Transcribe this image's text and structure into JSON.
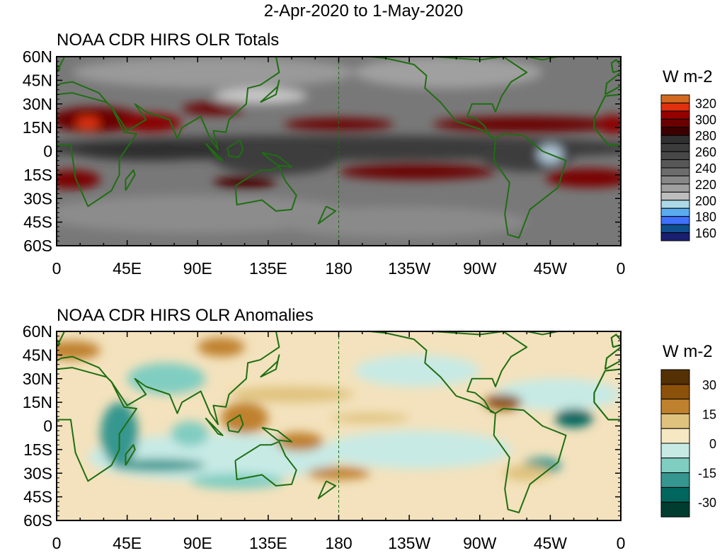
{
  "title": "2-Apr-2020 to 1-May-2020",
  "chart_data": [
    {
      "type": "heatmap",
      "title": "NOAA CDR HIRS OLR Totals",
      "lat_labels": [
        "60N",
        "45N",
        "30N",
        "15N",
        "0",
        "15S",
        "30S",
        "45S",
        "60S"
      ],
      "lon_labels": [
        "0",
        "45E",
        "90E",
        "135E",
        "180",
        "135W",
        "90W",
        "45W",
        "0"
      ],
      "lat_range": [
        -60,
        60
      ],
      "lon_range": [
        0,
        360
      ],
      "colorbar": {
        "unit": "W m-2",
        "labels": [
          "320",
          "300",
          "280",
          "260",
          "240",
          "220",
          "200",
          "180",
          "160"
        ],
        "colors": [
          "#d2691e",
          "#e0300e",
          "#960000",
          "#6a0000",
          "#3c0000",
          "#303030",
          "#3c3c3c",
          "#484848",
          "#585858",
          "#6c6c6c",
          "#888888",
          "#a0a0a0",
          "#bdbdbd",
          "#add8e6",
          "#5aacf0",
          "#4070ff",
          "#10508f",
          "#1a1f70"
        ]
      }
    },
    {
      "type": "heatmap",
      "title": "NOAA CDR HIRS OLR Anomalies",
      "lat_labels": [
        "60N",
        "45N",
        "30N",
        "15N",
        "0",
        "15S",
        "30S",
        "45S",
        "60S"
      ],
      "lon_labels": [
        "0",
        "45E",
        "90E",
        "135E",
        "180",
        "135W",
        "90W",
        "45W",
        "0"
      ],
      "lat_range": [
        -60,
        60
      ],
      "lon_range": [
        0,
        360
      ],
      "colorbar": {
        "unit": "W m-2",
        "labels": [
          "30",
          "15",
          "0",
          "-15",
          "-30"
        ],
        "colors": [
          "#543005",
          "#8c510a",
          "#bf812d",
          "#dfc27d",
          "#f6e8c3",
          "#c7eae5",
          "#80cdc1",
          "#35978f",
          "#01665e",
          "#003c30"
        ]
      }
    }
  ]
}
